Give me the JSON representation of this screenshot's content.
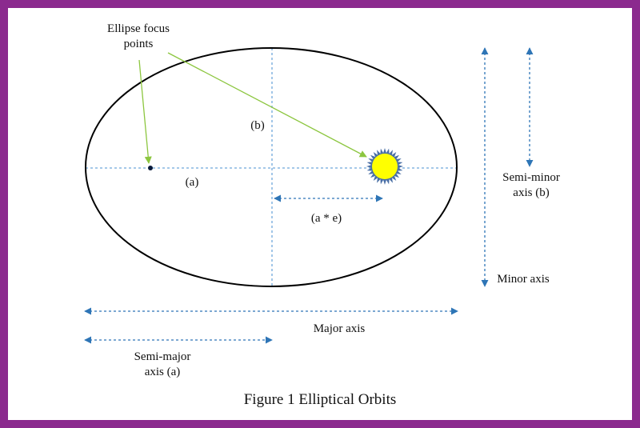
{
  "colors": {
    "frame": "#8b2a8e",
    "ellipse_stroke": "#000000",
    "dashed_axis": "#6fa8dc",
    "arrow_blue": "#2e75b6",
    "pointer_green": "#8cc63f",
    "sun_fill": "#ffff00",
    "sun_rays": "#4a6fa5"
  },
  "labels": {
    "focus_points": [
      "Ellipse focus",
      "points"
    ],
    "b_label": "(b)",
    "a_label": "(a)",
    "ae_label": "(a * e)",
    "semi_minor": [
      "Semi-minor",
      "axis (b)"
    ],
    "minor_axis": "Minor axis",
    "major_axis": "Major axis",
    "semi_major": [
      "Semi-major",
      "axis (a)"
    ],
    "caption": "Figure 1 Elliptical Orbits"
  },
  "icons": {
    "sun": "sun-icon",
    "focus_dot": "focus-dot-icon"
  }
}
